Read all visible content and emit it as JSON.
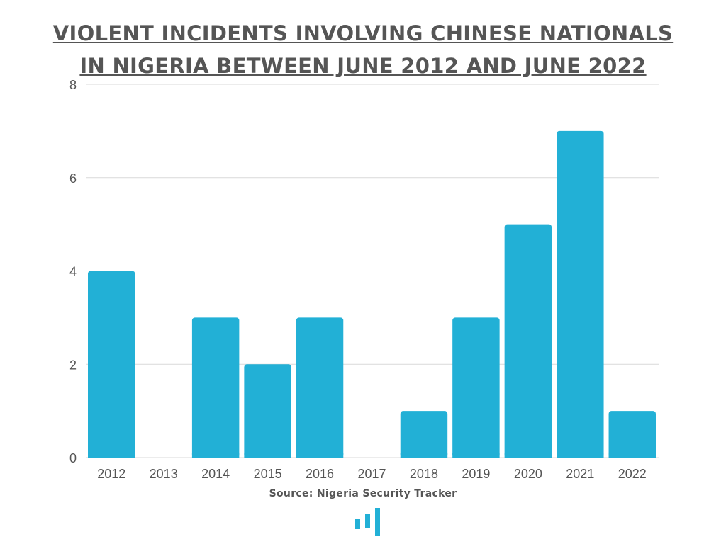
{
  "title": {
    "line1": "VIOLENT INCIDENTS INVOLVING CHINESE NATIONALS",
    "line2": "IN NIGERIA BETWEEN JUNE 2012 AND JUNE 2022"
  },
  "source": "Source: Nigeria Security Tracker",
  "logo_icon": "bar-logo-icon",
  "colors": {
    "bar": "#22b0d6",
    "grid": "#d9d9d9",
    "text": "#555555",
    "logo": "#22b0d6"
  },
  "chart_data": {
    "type": "bar",
    "title": "VIOLENT INCIDENTS INVOLVING CHINESE NATIONALS IN NIGERIA BETWEEN JUNE 2012 AND JUNE 2022",
    "categories": [
      "2012",
      "2013",
      "2014",
      "2015",
      "2016",
      "2017",
      "2018",
      "2019",
      "2020",
      "2021",
      "2022"
    ],
    "values": [
      4,
      0,
      3,
      2,
      3,
      0,
      1,
      3,
      5,
      7,
      1
    ],
    "xlabel": "",
    "ylabel": "",
    "ylim": [
      0,
      8
    ],
    "yticks": [
      0,
      2,
      4,
      6,
      8
    ],
    "grid": true,
    "legend": "none"
  }
}
